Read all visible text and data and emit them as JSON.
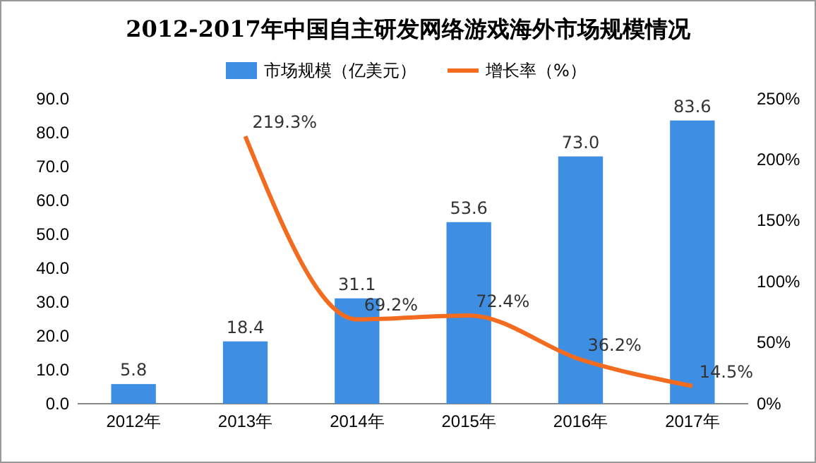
{
  "chart_data": {
    "type": "bar",
    "title": "2012-2017年中国自主研发网络游戏海外市场规模情况",
    "categories": [
      "2012年",
      "2013年",
      "2014年",
      "2015年",
      "2016年",
      "2017年"
    ],
    "series": [
      {
        "name": "市场规模（亿美元）",
        "color": "#3e8fe3",
        "values": [
          5.8,
          18.4,
          31.1,
          53.6,
          73.0,
          83.6
        ],
        "value_labels": [
          "5.8",
          "18.4",
          "31.1",
          "53.6",
          "73.0",
          "83.6"
        ]
      },
      {
        "name": "增长率（%）",
        "type": "line",
        "axis": "y2",
        "color": "#f26b1f",
        "values": [
          null,
          219.3,
          69.2,
          72.4,
          36.2,
          14.5
        ],
        "value_labels": [
          null,
          "219.3%",
          "69.2%",
          "72.4%",
          "36.2%",
          "14.5%"
        ]
      }
    ],
    "ylim": [
      0,
      90
    ],
    "yticks": [
      {
        "value": 0,
        "label": "0.0"
      },
      {
        "value": 10,
        "label": "10.0"
      },
      {
        "value": 20,
        "label": "20.0"
      },
      {
        "value": 30,
        "label": "30.0"
      },
      {
        "value": 40,
        "label": "40.0"
      },
      {
        "value": 50,
        "label": "50.0"
      },
      {
        "value": 60,
        "label": "60.0"
      },
      {
        "value": 70,
        "label": "70.0"
      },
      {
        "value": 80,
        "label": "80.0"
      },
      {
        "value": 90,
        "label": "90.0"
      }
    ],
    "y2lim": [
      0,
      250
    ],
    "y2ticks": [
      {
        "value": 0,
        "label": "0%"
      },
      {
        "value": 50,
        "label": "50%"
      },
      {
        "value": 100,
        "label": "100%"
      },
      {
        "value": 150,
        "label": "150%"
      },
      {
        "value": 200,
        "label": "200%"
      },
      {
        "value": 250,
        "label": "250%"
      }
    ],
    "legend": "top",
    "grid": false,
    "marker": "none"
  }
}
